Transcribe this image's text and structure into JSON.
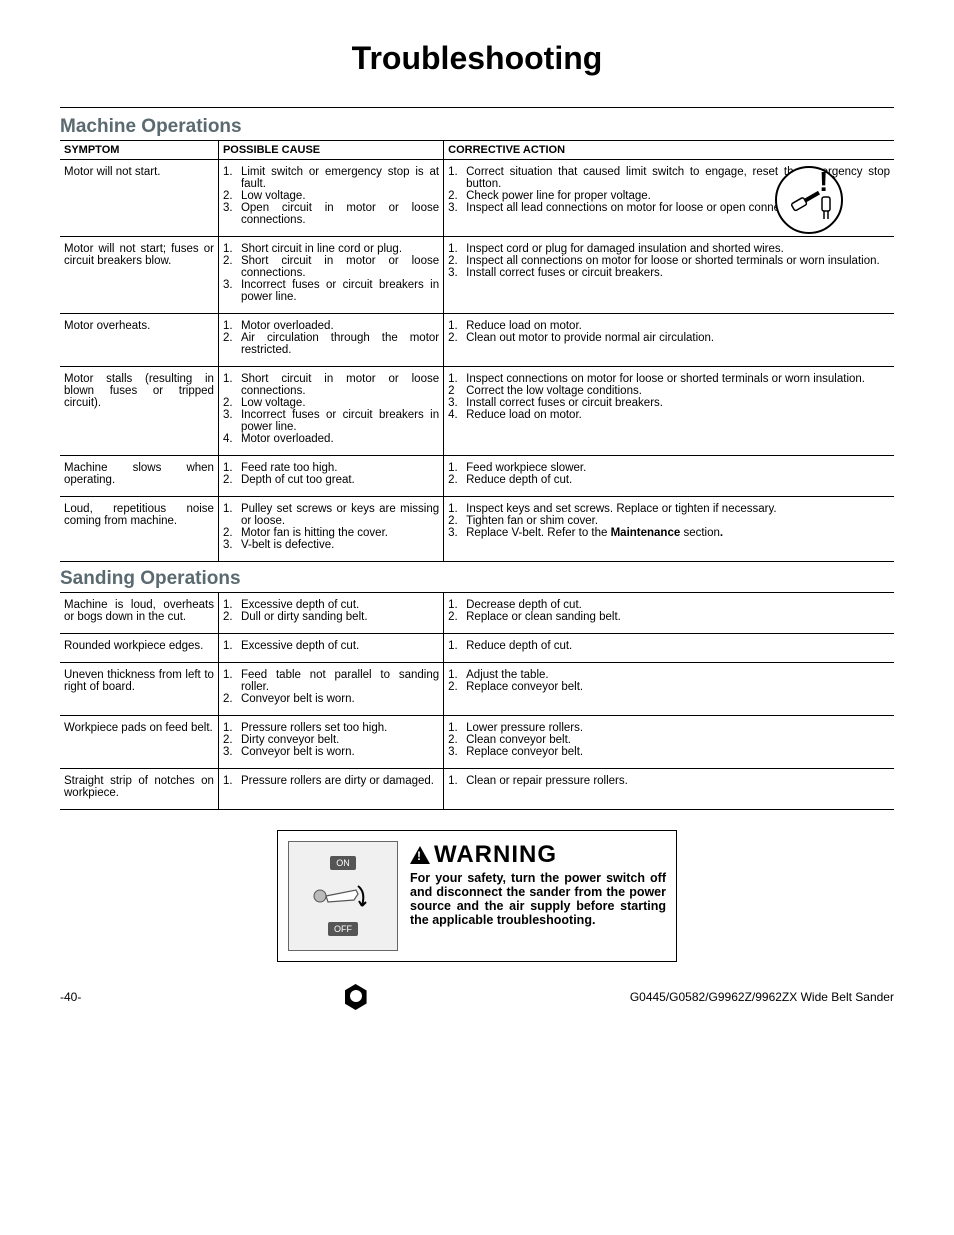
{
  "page_title": "Troubleshooting",
  "section1_title": "Machine Operations",
  "section2_title": "Sanding Operations",
  "headers": {
    "symptom": "SYMPTOM",
    "cause": "POSSIBLE CAUSE",
    "action": "CORRECTIVE ACTION"
  },
  "col_widths": {
    "symptom": "19%",
    "cause": "27%",
    "action": "54%"
  },
  "colors": {
    "section_title": "#5a6a70",
    "border": "#000000",
    "switch_bg": "#f0f0f0"
  },
  "corner_icon_title": "Troubleshooting section icon",
  "machine_rows": [
    {
      "symptom": "Motor will not start.",
      "causes": [
        "Limit switch or emergency stop is at fault.",
        "Low voltage.",
        "Open circuit in motor or loose connections."
      ],
      "actions": [
        "Correct situation that caused limit switch to engage, reset the emergency stop button.",
        "Check power line for proper voltage.",
        "Inspect all lead connections on motor for loose or open connections."
      ]
    },
    {
      "symptom": "Motor will not start; fuses or circuit breakers blow.",
      "causes": [
        "Short circuit in line cord or plug.",
        "Short circuit in motor or loose connections.",
        "Incorrect fuses or circuit breakers in power line."
      ],
      "actions": [
        "Inspect cord or plug for damaged insulation and shorted wires.",
        "Inspect all connections on motor for loose or shorted terminals or worn insulation.",
        "Install correct fuses or circuit breakers."
      ]
    },
    {
      "symptom": "Motor overheats.",
      "causes": [
        "Motor overloaded.",
        "Air circulation through the motor restricted."
      ],
      "actions": [
        "Reduce load on motor.",
        "Clean out motor to provide normal air circulation."
      ]
    },
    {
      "symptom": "Motor stalls (resulting in blown fuses or tripped circuit).",
      "causes": [
        "Short circuit in motor or loose connections.",
        "Low voltage.",
        "Incorrect fuses or circuit breakers in power line.",
        "Motor overloaded."
      ],
      "actions": [
        "Inspect connections on motor for loose or shorted terminals or worn insulation.",
        "Correct the low voltage conditions.",
        "Install correct fuses or circuit breakers.",
        "Reduce load on motor."
      ],
      "action_numbers": [
        "1.",
        "2",
        "3.",
        "4."
      ]
    },
    {
      "symptom": "Machine slows when operating.",
      "causes": [
        "Feed rate too high.",
        "Depth of cut too great."
      ],
      "actions": [
        "Feed workpiece slower.",
        "Reduce depth of cut."
      ]
    },
    {
      "symptom": "Loud, repetitious noise coming from machine.",
      "causes": [
        "Pulley set screws or keys are missing or loose.",
        "Motor fan is hitting the cover.",
        "V-belt is defective."
      ],
      "actions": [
        "Inspect keys and set screws. Replace or tighten if necessary.",
        "Tighten fan or shim cover.",
        "Replace V-belt. Refer to the <b>Maintenance</b> section<b>.</b>"
      ]
    }
  ],
  "sanding_rows": [
    {
      "symptom": "Machine is loud, overheats or bogs down in the cut.",
      "causes": [
        "Excessive depth of cut.",
        "Dull or dirty sanding belt."
      ],
      "actions": [
        "Decrease depth of cut.",
        "Replace or clean sanding belt."
      ]
    },
    {
      "symptom": "Rounded workpiece edges.",
      "causes": [
        "Excessive depth of cut."
      ],
      "actions": [
        "Reduce depth of cut."
      ]
    },
    {
      "symptom": "Uneven thickness from left to right of board.",
      "causes": [
        "Feed table not parallel to sanding roller.",
        "Conveyor belt is worn."
      ],
      "actions": [
        "Adjust the table.",
        "Replace conveyor belt."
      ]
    },
    {
      "symptom": "Workpiece pads on feed belt.",
      "causes": [
        "Pressure rollers set too high.",
        "Dirty conveyor belt.",
        "Conveyor belt is worn."
      ],
      "actions": [
        "Lower pressure rollers.",
        "Clean conveyor belt.",
        "Replace conveyor belt."
      ]
    },
    {
      "symptom": "Straight strip of notches on workpiece.",
      "causes": [
        "Pressure rollers are dirty or damaged."
      ],
      "actions": [
        "Clean or repair pressure rollers."
      ]
    }
  ],
  "warning": {
    "header": "WARNING",
    "text": "For your safety, turn the power switch off and disconnect the sander from the power source and the air supply before starting the applicable troubleshooting.",
    "on_label": "ON",
    "off_label": "OFF"
  },
  "footer": {
    "page_label": "-40-",
    "doc_label": "G0445/G0582/G9962Z/9962ZX Wide Belt Sander"
  }
}
